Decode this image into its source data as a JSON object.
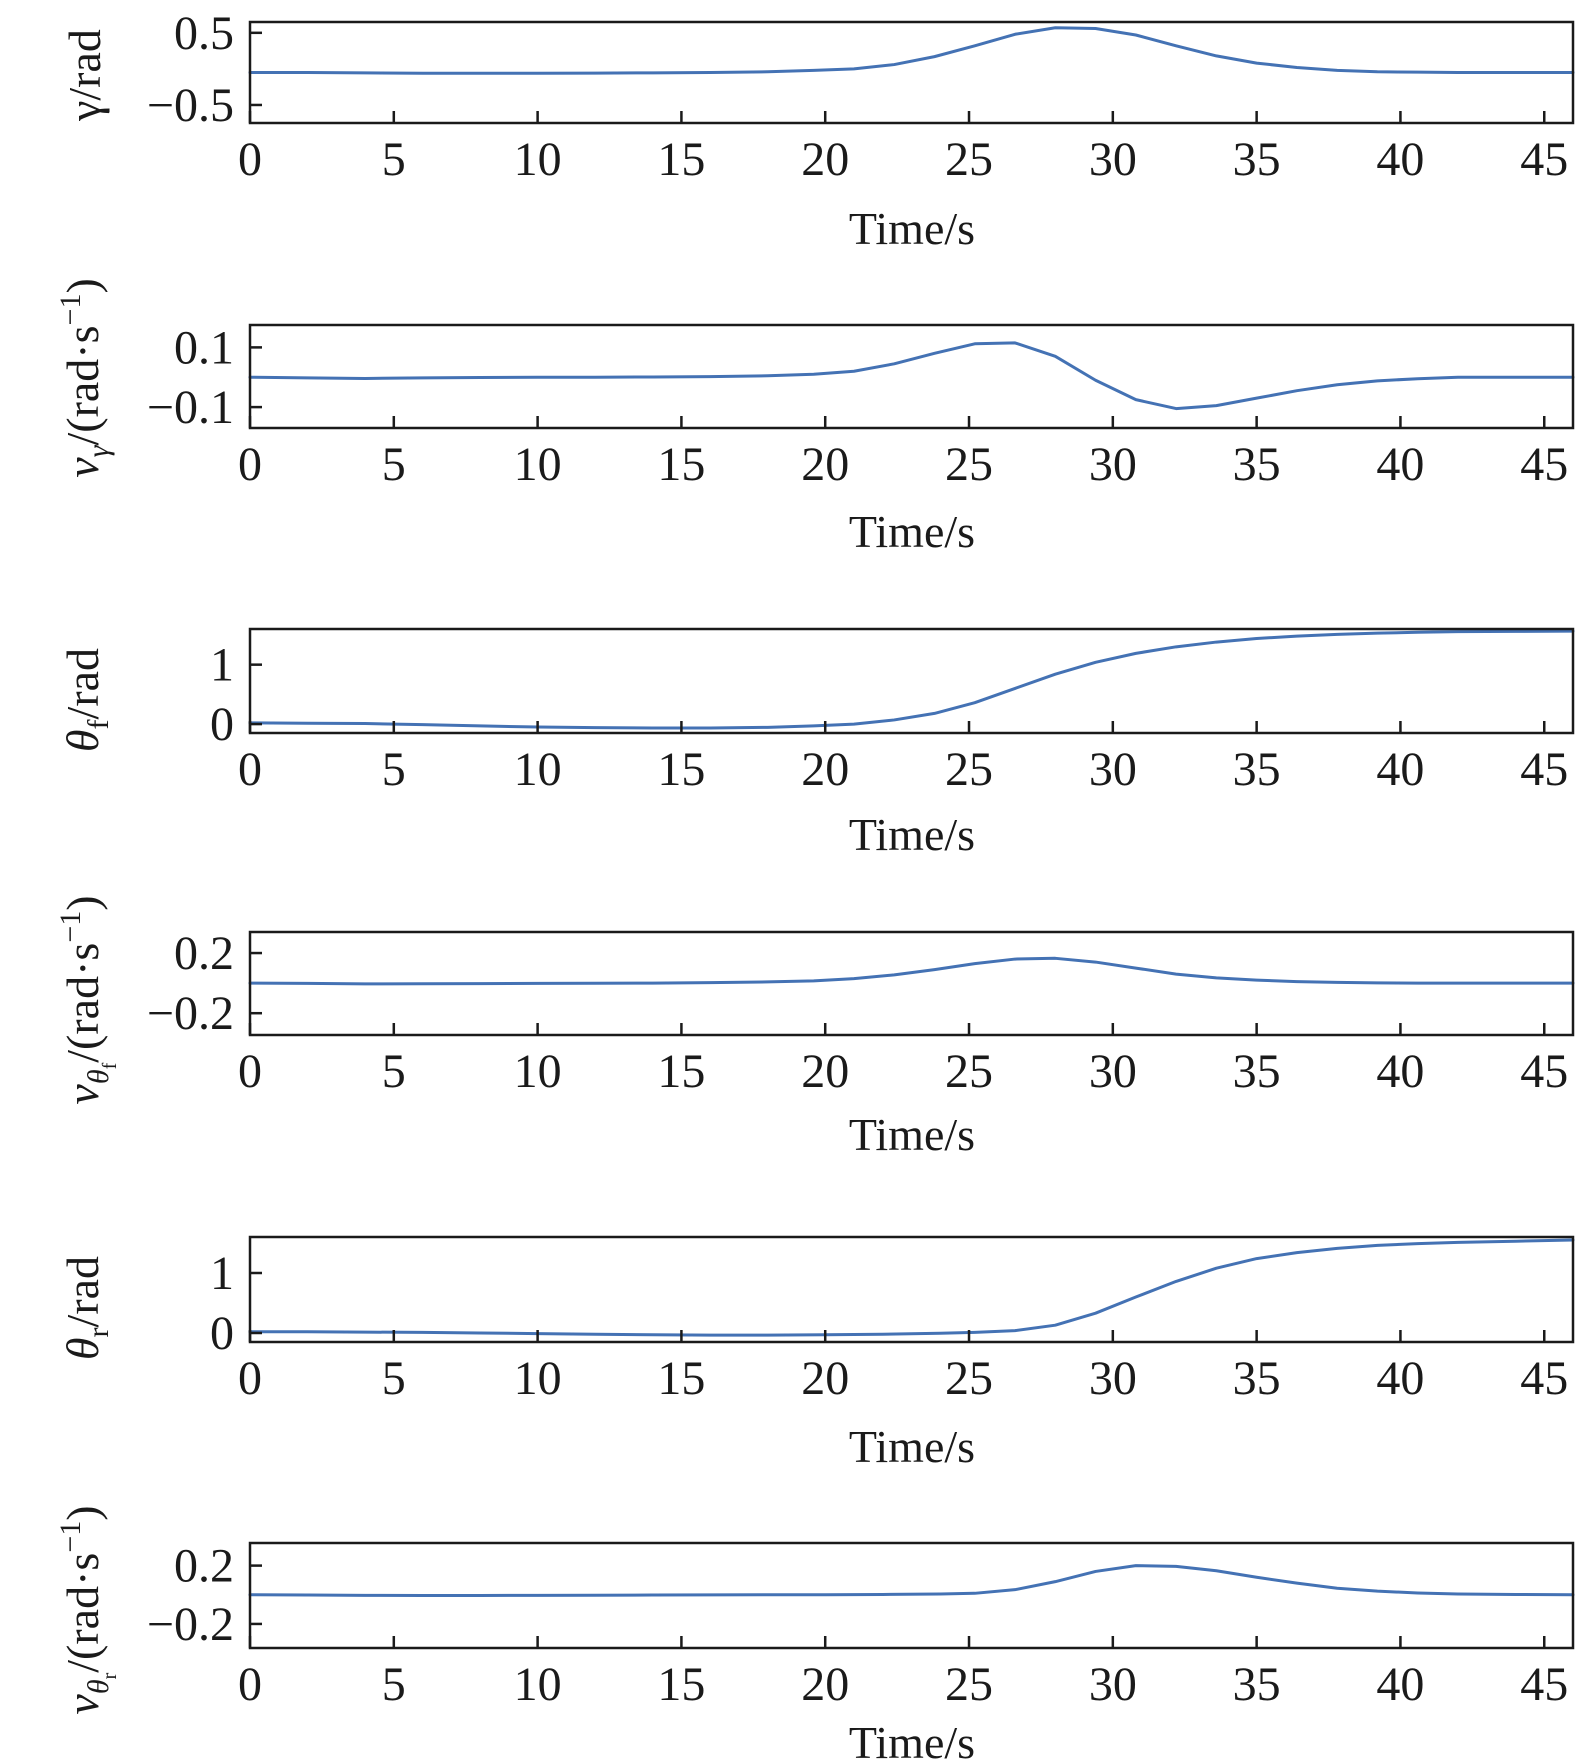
{
  "colors": {
    "line": "#4472B4",
    "axis": "#1a1a1a"
  },
  "chart_data": [
    {
      "type": "line",
      "ylabel": "γ/rad",
      "xlabel": "Time/s",
      "xlim": [
        0,
        46
      ],
      "ylim": [
        -0.75,
        0.65
      ],
      "xticks": [
        0,
        5,
        10,
        15,
        20,
        25,
        30,
        35,
        40,
        45
      ],
      "yticks": [
        0.5,
        -0.5
      ],
      "ytick_labels": [
        "0.5",
        "−0.5"
      ],
      "series": [
        {
          "x": [
            0,
            2,
            4,
            6,
            8,
            10,
            12,
            14,
            16,
            18,
            19.6,
            21,
            22.4,
            23.8,
            25.2,
            26.6,
            28,
            29.4,
            30.8,
            32.2,
            33.6,
            35,
            36.4,
            37.8,
            39.2,
            40.6,
            42,
            44,
            46
          ],
          "y": [
            -0.05,
            -0.05,
            -0.055,
            -0.06,
            -0.06,
            -0.06,
            -0.058,
            -0.055,
            -0.05,
            -0.04,
            -0.02,
            0.0,
            0.06,
            0.17,
            0.32,
            0.48,
            0.57,
            0.56,
            0.47,
            0.32,
            0.18,
            0.08,
            0.02,
            -0.02,
            -0.04,
            -0.045,
            -0.05,
            -0.05,
            -0.05
          ]
        }
      ]
    },
    {
      "type": "line",
      "ylabel": "",
      "xlabel": "Time/s",
      "xlim": [
        0,
        46
      ],
      "ylim": [
        -0.17,
        0.175
      ],
      "xticks": [
        0,
        5,
        10,
        15,
        20,
        25,
        30,
        35,
        40,
        45
      ],
      "yticks": [
        0.1,
        -0.1
      ],
      "ytick_labels": [
        "0.1",
        "−0.1"
      ],
      "series": [
        {
          "x": [
            0,
            2,
            4,
            6,
            8,
            10,
            12,
            14,
            16,
            18,
            19.6,
            21,
            22.4,
            23.8,
            25.2,
            26.6,
            28,
            29.4,
            30.8,
            32.2,
            33.6,
            35,
            36.4,
            37.8,
            39.2,
            40.6,
            42,
            44,
            46
          ],
          "y": [
            0.0,
            -0.002,
            -0.004,
            -0.002,
            -0.001,
            0.0,
            0.0,
            0.001,
            0.002,
            0.005,
            0.01,
            0.02,
            0.045,
            0.08,
            0.112,
            0.115,
            0.07,
            -0.01,
            -0.075,
            -0.105,
            -0.095,
            -0.07,
            -0.045,
            -0.025,
            -0.012,
            -0.005,
            0.0,
            0.0,
            0.0
          ]
        }
      ]
    },
    {
      "type": "line",
      "ylabel": "",
      "xlabel": "Time/s",
      "xlim": [
        0,
        46
      ],
      "ylim": [
        -0.15,
        1.6
      ],
      "xticks": [
        0,
        5,
        10,
        15,
        20,
        25,
        30,
        35,
        40,
        45
      ],
      "yticks": [
        1,
        0
      ],
      "ytick_labels": [
        "1",
        "0"
      ],
      "series": [
        {
          "x": [
            0,
            2,
            4,
            6,
            8,
            10,
            12,
            14,
            16,
            18,
            19.6,
            21,
            22.4,
            23.8,
            25.2,
            26.6,
            28,
            29.4,
            30.8,
            32.2,
            33.6,
            35,
            36.4,
            37.8,
            39.2,
            40.6,
            42,
            44,
            46
          ],
          "y": [
            0.02,
            0.015,
            0.01,
            -0.01,
            -0.03,
            -0.05,
            -0.06,
            -0.065,
            -0.065,
            -0.055,
            -0.03,
            0.0,
            0.07,
            0.18,
            0.36,
            0.6,
            0.84,
            1.04,
            1.19,
            1.3,
            1.38,
            1.44,
            1.48,
            1.51,
            1.53,
            1.545,
            1.555,
            1.56,
            1.565
          ]
        }
      ]
    },
    {
      "type": "line",
      "ylabel": "",
      "xlabel": "Time/s",
      "xlim": [
        0,
        46
      ],
      "ylim": [
        -0.345,
        0.34
      ],
      "xticks": [
        0,
        5,
        10,
        15,
        20,
        25,
        30,
        35,
        40,
        45
      ],
      "yticks": [
        0.2,
        -0.2
      ],
      "ytick_labels": [
        "0.2",
        "−0.2"
      ],
      "series": [
        {
          "x": [
            0,
            2,
            4,
            6,
            8,
            10,
            12,
            14,
            16,
            18,
            19.6,
            21,
            22.4,
            23.8,
            25.2,
            26.6,
            28,
            29.4,
            30.8,
            32.2,
            33.6,
            35,
            36.4,
            37.8,
            39.2,
            40.6,
            42,
            44,
            46
          ],
          "y": [
            0.0,
            -0.002,
            -0.005,
            -0.004,
            -0.003,
            -0.002,
            -0.001,
            0.0,
            0.003,
            0.008,
            0.015,
            0.03,
            0.055,
            0.09,
            0.13,
            0.16,
            0.165,
            0.14,
            0.1,
            0.06,
            0.035,
            0.02,
            0.01,
            0.005,
            0.002,
            0.0,
            0.0,
            0.0,
            0.0
          ]
        }
      ]
    },
    {
      "type": "line",
      "ylabel": "",
      "xlabel": "Time/s",
      "xlim": [
        0,
        46
      ],
      "ylim": [
        -0.15,
        1.6
      ],
      "xticks": [
        0,
        5,
        10,
        15,
        20,
        25,
        30,
        35,
        40,
        45
      ],
      "yticks": [
        1,
        0
      ],
      "ytick_labels": [
        "1",
        "0"
      ],
      "series": [
        {
          "x": [
            0,
            2,
            4,
            6,
            8,
            10,
            12,
            14,
            16,
            18,
            20,
            22,
            24,
            25.2,
            26.6,
            28,
            29.4,
            30.8,
            32.2,
            33.6,
            35,
            36.4,
            37.8,
            39.2,
            40.6,
            42,
            44,
            46
          ],
          "y": [
            0.02,
            0.02,
            0.015,
            0.01,
            0.0,
            -0.01,
            -0.02,
            -0.03,
            -0.035,
            -0.035,
            -0.03,
            -0.02,
            -0.005,
            0.01,
            0.04,
            0.13,
            0.33,
            0.6,
            0.86,
            1.08,
            1.24,
            1.34,
            1.41,
            1.46,
            1.49,
            1.51,
            1.53,
            1.55
          ]
        }
      ]
    },
    {
      "type": "line",
      "ylabel": "",
      "xlabel": "Time/s",
      "xlim": [
        0,
        46
      ],
      "ylim": [
        -0.365,
        0.355
      ],
      "xticks": [
        0,
        5,
        10,
        15,
        20,
        25,
        30,
        35,
        40,
        45
      ],
      "yticks": [
        0.2,
        -0.2
      ],
      "ytick_labels": [
        "0.2",
        "−0.2"
      ],
      "series": [
        {
          "x": [
            0,
            2,
            4,
            6,
            8,
            10,
            12,
            14,
            16,
            18,
            20,
            22,
            24,
            25.2,
            26.6,
            28,
            29.4,
            30.8,
            32.2,
            33.6,
            35,
            36.4,
            37.8,
            39.2,
            40.6,
            42,
            44,
            46
          ],
          "y": [
            0.0,
            -0.002,
            -0.004,
            -0.005,
            -0.005,
            -0.004,
            -0.003,
            -0.002,
            -0.001,
            0.0,
            0.0,
            0.002,
            0.005,
            0.01,
            0.035,
            0.09,
            0.16,
            0.2,
            0.195,
            0.165,
            0.12,
            0.08,
            0.045,
            0.025,
            0.012,
            0.005,
            0.002,
            0.0
          ]
        }
      ]
    }
  ]
}
